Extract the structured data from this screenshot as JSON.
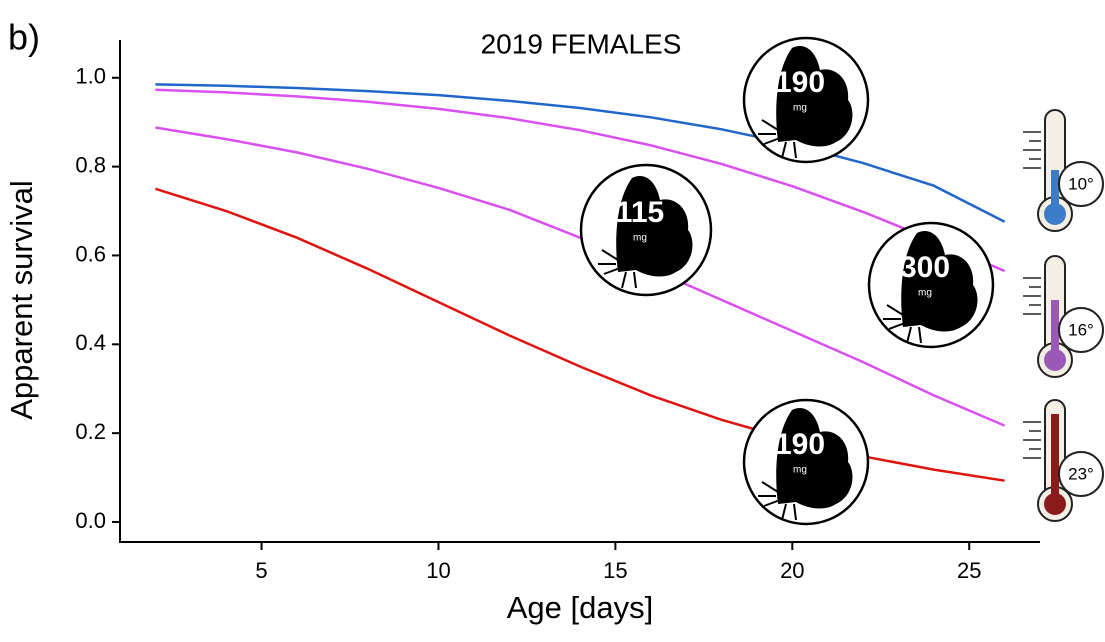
{
  "chart_data": {
    "type": "line",
    "panel_label": "b)",
    "title": "2019 FEMALES",
    "x_label": "Age [days]",
    "y_label": "Apparent survival",
    "x": [
      2,
      4,
      6,
      8,
      10,
      12,
      14,
      16,
      18,
      20,
      22,
      24,
      26
    ],
    "series": [
      {
        "color": "#2166c8",
        "values": [
          0.985,
          0.982,
          0.977,
          0.97,
          0.961,
          0.948,
          0.932,
          0.911,
          0.884,
          0.85,
          0.808,
          0.757,
          0.676
        ]
      },
      {
        "color": "#d94fef",
        "values": [
          0.973,
          0.967,
          0.958,
          0.946,
          0.93,
          0.909,
          0.882,
          0.848,
          0.806,
          0.756,
          0.698,
          0.634,
          0.565
        ]
      },
      {
        "color": "#d94fef",
        "values": [
          0.888,
          0.862,
          0.832,
          0.795,
          0.752,
          0.703,
          0.64,
          0.57,
          0.5,
          0.43,
          0.36,
          0.285,
          0.217
        ]
      },
      {
        "color": "#e0140f",
        "values": [
          0.75,
          0.7,
          0.64,
          0.57,
          0.495,
          0.42,
          0.35,
          0.285,
          0.23,
          0.185,
          0.148,
          0.118,
          0.093
        ]
      }
    ],
    "xlim": [
      1,
      27
    ],
    "ylim": [
      -0.045,
      1.085
    ],
    "xticks": [
      5,
      10,
      15,
      20,
      25
    ],
    "yticks": [
      {
        "value": 0,
        "label": "0.0"
      },
      0.2,
      0.4,
      0.6,
      0.8,
      {
        "value": 1,
        "label": "1.0"
      }
    ],
    "mass_icons": [
      {
        "mass": "190",
        "unit": "mg"
      },
      {
        "mass": "115",
        "unit": "mg"
      },
      {
        "mass": "300",
        "unit": "mg"
      },
      {
        "mass": "190",
        "unit": "mg"
      }
    ],
    "temperatures": [
      {
        "label": "10°",
        "color": "#3d7cc9"
      },
      {
        "label": "16°",
        "color": "#9b59b6"
      },
      {
        "label": "23°",
        "color": "#8b1a1a"
      }
    ]
  }
}
